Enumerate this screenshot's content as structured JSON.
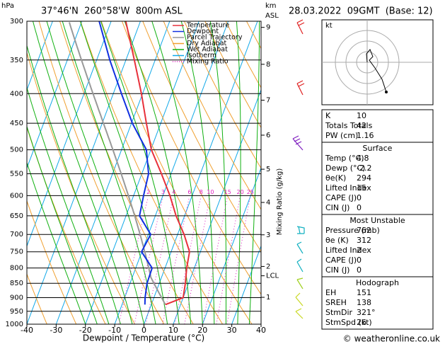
{
  "chart_data": {
    "type": "skewt",
    "title": "37°46'N  260°58'W  800m ASL",
    "subtitle": "28.03.2022  09GMT  (Base: 12)",
    "xlabel": "Dewpoint / Temperature (°C)",
    "ylabel": "hPa",
    "y2label": [
      "km",
      "ASL"
    ],
    "mixing_ratio_label": "Mixing Ratio (g/kg)",
    "xlim": [
      -40,
      40
    ],
    "xticks": [
      -40,
      -30,
      -20,
      -10,
      0,
      10,
      20,
      30,
      40
    ],
    "ylim": [
      1000,
      300
    ],
    "y_scale": "log",
    "yticks": [
      300,
      350,
      400,
      450,
      500,
      550,
      600,
      650,
      700,
      750,
      800,
      850,
      900,
      950,
      1000
    ],
    "y2ticks": [
      1,
      2,
      3,
      4,
      5,
      6,
      7,
      8,
      9,
      {
        "value": 1.7,
        "label": "LCL"
      }
    ],
    "pressure": [
      925,
      900,
      850,
      800,
      750,
      700,
      650,
      600,
      550,
      500,
      450,
      400,
      350,
      300
    ],
    "series": [
      {
        "name": "Temperature",
        "color": "#e8303a",
        "values": [
          4.8,
          10.0,
          8.9,
          7.4,
          6.3,
          2.2,
          -2.9,
          -7.6,
          -13.3,
          -19.8,
          -24.9,
          -30.4,
          -37.1,
          -45.0
        ]
      },
      {
        "name": "Dewpoint",
        "color": "#1030e0",
        "values": [
          -2.2,
          -3.0,
          -4.2,
          -4.4,
          -10.1,
          -9.2,
          -15.4,
          -16.6,
          -17.7,
          -21.5,
          -29.7,
          -37.2,
          -45.5,
          -54.1
        ]
      }
    ],
    "reference_lines": [
      {
        "name": "Parcel Trajectory",
        "color": "#999999"
      },
      {
        "name": "Dry Adiabat",
        "color": "#f0a030"
      },
      {
        "name": "Wet Adiabat",
        "color": "#10b010"
      },
      {
        "name": "Isotherm",
        "color": "#10a8e8"
      },
      {
        "name": "Mixing Ratio",
        "color": "#e020c0"
      }
    ],
    "mixing_ratios": [
      2,
      3,
      4,
      6,
      8,
      10,
      15,
      20,
      25
    ]
  },
  "hodograph": {
    "unit": "kt"
  },
  "stability": {
    "sections": [
      {
        "rows": [
          [
            "K",
            "10"
          ],
          [
            "Totals Totals",
            "42"
          ],
          [
            "PW (cm)",
            "1.16"
          ]
        ]
      },
      {
        "title": "Surface",
        "rows": [
          [
            "Temp (°C)",
            "4.8"
          ],
          [
            "Dewp (°C)",
            "-2.2"
          ],
          [
            "θe(K)",
            "294"
          ],
          [
            "Lifted Index",
            "15"
          ],
          [
            "CAPE (J)",
            "0"
          ],
          [
            "CIN (J)",
            "0"
          ]
        ]
      },
      {
        "title": "Most Unstable",
        "rows": [
          [
            "Pressure (mb)",
            "762"
          ],
          [
            "θe (K)",
            "312"
          ],
          [
            "Lifted Index",
            "2"
          ],
          [
            "CAPE (J)",
            "0"
          ],
          [
            "CIN (J)",
            "0"
          ]
        ]
      },
      {
        "title": "Hodograph",
        "rows": [
          [
            "EH",
            "151"
          ],
          [
            "SREH",
            "138"
          ],
          [
            "StmDir",
            "321°"
          ],
          [
            "StmSpd (kt)",
            "26"
          ]
        ]
      }
    ]
  },
  "footer": "© weatheronline.co.uk"
}
